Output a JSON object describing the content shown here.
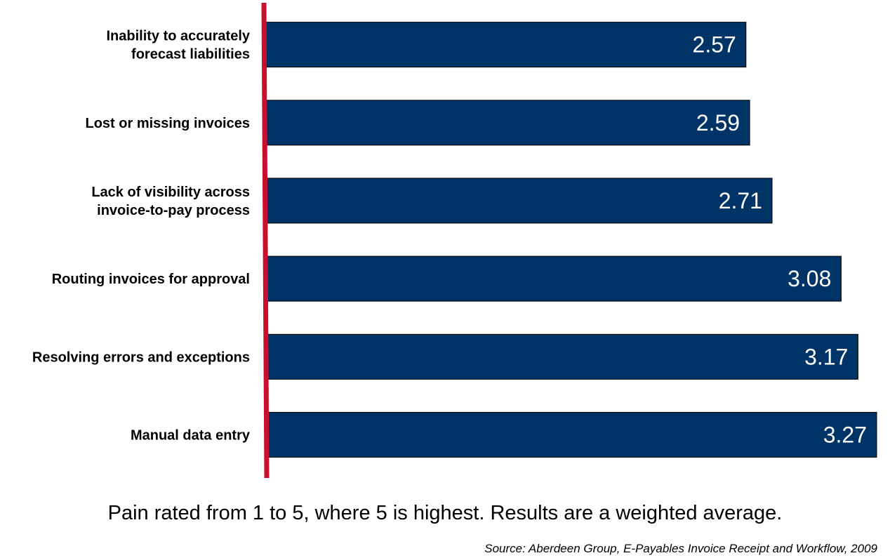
{
  "chart_data": {
    "type": "bar",
    "orientation": "horizontal",
    "categories": [
      [
        "Inability to accurately",
        "forecast liabilities"
      ],
      [
        "Lost or missing invoices"
      ],
      [
        "Lack of visibility across",
        "invoice-to-pay process"
      ],
      [
        "Routing invoices for approval"
      ],
      [
        "Resolving errors and exceptions"
      ],
      [
        "Manual data entry"
      ]
    ],
    "values": [
      2.57,
      2.59,
      2.71,
      3.08,
      3.17,
      3.27
    ],
    "value_labels": [
      "2.57",
      "2.59",
      "2.71",
      "3.08",
      "3.17",
      "3.27"
    ],
    "title": "",
    "xlabel": "",
    "ylabel": "",
    "xlim": [
      0,
      3.27
    ],
    "grid": false,
    "legend": "none",
    "colors": {
      "bar": "#003366",
      "bar_edge": "#000000",
      "axis": "#c8102e",
      "value_text": "#ffffff",
      "label_text": "#000000"
    }
  },
  "footnote": "Pain rated from 1 to 5, where 5 is highest. Results are a weighted average.",
  "source": "Source: Aberdeen Group, E-Payables Invoice Receipt and Workflow, 2009"
}
